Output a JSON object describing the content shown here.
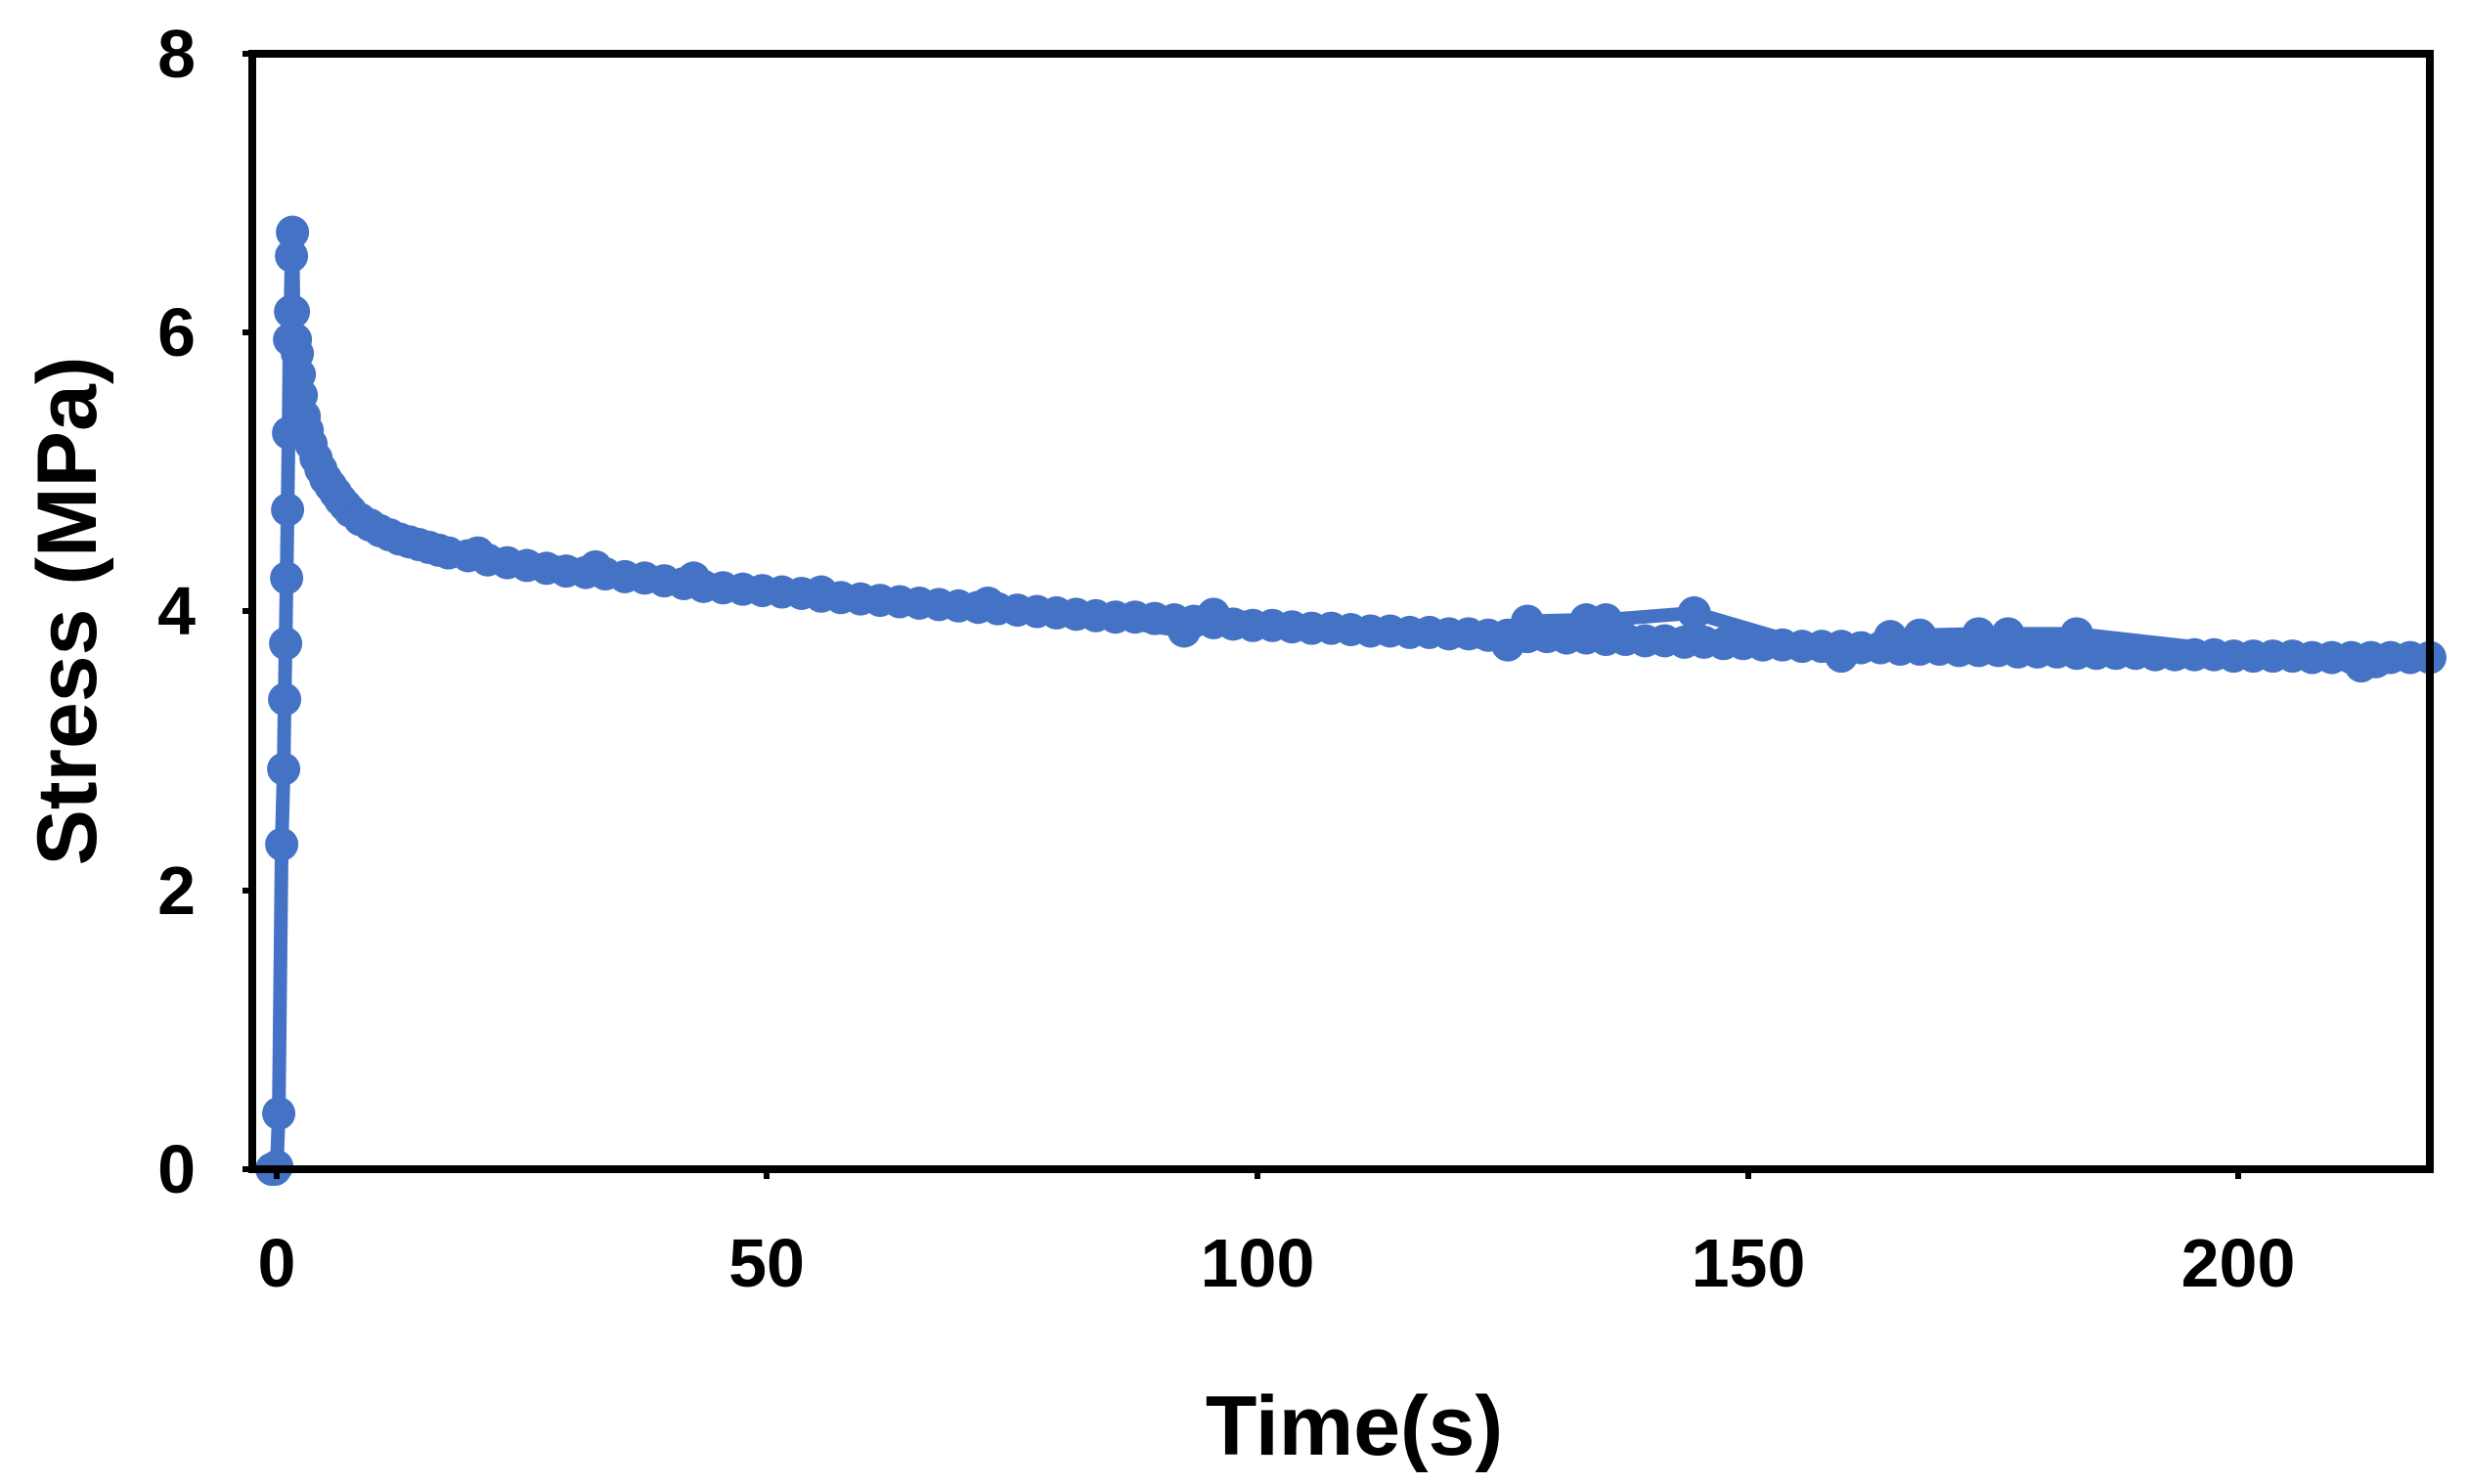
{
  "chart_data": {
    "type": "scatter",
    "title": "",
    "xlabel": "Time(s)",
    "ylabel": "Stress (MPa)",
    "xlim": [
      -2,
      220
    ],
    "ylim": [
      0,
      8
    ],
    "x_ticks": [
      "0",
      "50",
      "100",
      "150",
      "200"
    ],
    "y_ticks": [
      "0",
      "2",
      "4",
      "6",
      "8"
    ],
    "grid": false,
    "legend": "none",
    "marker_color": "#4472C4",
    "series": [
      {
        "values": [
          [
            0.0,
            0.0
          ],
          [
            0.3,
            0.0
          ],
          [
            0.5,
            0.02
          ],
          [
            0.7,
            0.4
          ],
          [
            1.0,
            2.33
          ],
          [
            1.2,
            2.87
          ],
          [
            1.3,
            3.37
          ],
          [
            1.4,
            3.77
          ],
          [
            1.5,
            4.24
          ],
          [
            1.6,
            4.73
          ],
          [
            1.7,
            5.28
          ],
          [
            1.8,
            5.95
          ],
          [
            1.9,
            6.15
          ],
          [
            2.0,
            6.55
          ],
          [
            2.1,
            6.72
          ],
          [
            2.2,
            6.15
          ],
          [
            2.4,
            5.95
          ],
          [
            2.6,
            5.85
          ],
          [
            2.8,
            5.7
          ],
          [
            3.0,
            5.55
          ],
          [
            3.3,
            5.4
          ],
          [
            3.6,
            5.3
          ],
          [
            4.0,
            5.2
          ],
          [
            4.5,
            5.1
          ],
          [
            5.0,
            5.02
          ],
          [
            5.5,
            4.95
          ],
          [
            6.0,
            4.9
          ],
          [
            6.5,
            4.85
          ],
          [
            7.0,
            4.8
          ],
          [
            7.5,
            4.76
          ],
          [
            8.0,
            4.72
          ],
          [
            9.0,
            4.66
          ],
          [
            10.0,
            4.62
          ],
          [
            11.0,
            4.58
          ],
          [
            12.0,
            4.55
          ],
          [
            13.0,
            4.52
          ],
          [
            14.0,
            4.5
          ],
          [
            15.0,
            4.48
          ],
          [
            16.0,
            4.46
          ],
          [
            17.0,
            4.44
          ],
          [
            18.0,
            4.42
          ],
          [
            20.0,
            4.4
          ],
          [
            22.0,
            4.37
          ],
          [
            24.0,
            4.35
          ],
          [
            26.0,
            4.33
          ],
          [
            28.0,
            4.31
          ],
          [
            30.0,
            4.29
          ],
          [
            32.0,
            4.28
          ],
          [
            34.0,
            4.27
          ],
          [
            36.0,
            4.25
          ],
          [
            38.0,
            4.24
          ],
          [
            40.0,
            4.22
          ],
          [
            42.0,
            4.2
          ],
          [
            44.0,
            4.18
          ],
          [
            46.0,
            4.17
          ],
          [
            48.0,
            4.16
          ],
          [
            50.0,
            4.15
          ],
          [
            52.0,
            4.14
          ],
          [
            54.0,
            4.13
          ],
          [
            56.0,
            4.11
          ],
          [
            58.0,
            4.1
          ],
          [
            60.0,
            4.09
          ],
          [
            62.0,
            4.08
          ],
          [
            64.0,
            4.07
          ],
          [
            66.0,
            4.06
          ],
          [
            68.0,
            4.05
          ],
          [
            70.0,
            4.04
          ],
          [
            72.0,
            4.03
          ],
          [
            74.0,
            4.02
          ],
          [
            76.0,
            4.01
          ],
          [
            78.0,
            4.0
          ],
          [
            80.0,
            3.99
          ],
          [
            82.0,
            3.98
          ],
          [
            84.0,
            3.97
          ],
          [
            86.0,
            3.96
          ],
          [
            88.0,
            3.96
          ],
          [
            90.0,
            3.95
          ],
          [
            92.0,
            3.94
          ],
          [
            94.0,
            3.93
          ],
          [
            96.0,
            3.92
          ],
          [
            98.0,
            3.91
          ],
          [
            100.0,
            3.9
          ],
          [
            102.0,
            3.9
          ],
          [
            104.0,
            3.89
          ],
          [
            106.0,
            3.88
          ],
          [
            108.0,
            3.88
          ],
          [
            110.0,
            3.87
          ],
          [
            112.0,
            3.86
          ],
          [
            114.0,
            3.86
          ],
          [
            116.0,
            3.85
          ],
          [
            118.0,
            3.85
          ],
          [
            120.0,
            3.84
          ],
          [
            122.0,
            3.84
          ],
          [
            124.0,
            3.83
          ],
          [
            126.0,
            3.83
          ],
          [
            128.0,
            3.82
          ],
          [
            130.0,
            3.82
          ],
          [
            132.0,
            3.81
          ],
          [
            134.0,
            3.81
          ],
          [
            136.0,
            3.8
          ],
          [
            138.0,
            3.8
          ],
          [
            140.0,
            3.79
          ],
          [
            142.0,
            3.79
          ],
          [
            144.0,
            3.78
          ],
          [
            146.0,
            3.78
          ],
          [
            148.0,
            3.77
          ],
          [
            150.0,
            3.77
          ],
          [
            152.0,
            3.76
          ],
          [
            154.0,
            3.76
          ],
          [
            156.0,
            3.75
          ],
          [
            158.0,
            3.75
          ],
          [
            160.0,
            3.75
          ],
          [
            162.0,
            3.74
          ],
          [
            164.0,
            3.74
          ],
          [
            166.0,
            3.73
          ],
          [
            168.0,
            3.73
          ],
          [
            170.0,
            3.73
          ],
          [
            172.0,
            3.72
          ],
          [
            174.0,
            3.72
          ],
          [
            176.0,
            3.72
          ],
          [
            178.0,
            3.71
          ],
          [
            180.0,
            3.71
          ],
          [
            182.0,
            3.71
          ],
          [
            184.0,
            3.7
          ],
          [
            186.0,
            3.7
          ],
          [
            188.0,
            3.7
          ],
          [
            190.0,
            3.7
          ],
          [
            192.0,
            3.69
          ],
          [
            194.0,
            3.69
          ],
          [
            196.0,
            3.69
          ],
          [
            198.0,
            3.69
          ],
          [
            200.0,
            3.68
          ],
          [
            202.0,
            3.68
          ],
          [
            204.0,
            3.68
          ],
          [
            206.0,
            3.68
          ],
          [
            208.0,
            3.67
          ],
          [
            210.0,
            3.67
          ],
          [
            212.0,
            3.67
          ],
          [
            214.0,
            3.67
          ],
          [
            216.0,
            3.67
          ],
          [
            218.0,
            3.67
          ],
          [
            220.0,
            3.67
          ],
          [
            21.0,
            4.42
          ],
          [
            33.0,
            4.32
          ],
          [
            43.0,
            4.24
          ],
          [
            56.0,
            4.14
          ],
          [
            73.0,
            4.06
          ],
          [
            93.0,
            3.86
          ],
          [
            96.0,
            3.98
          ],
          [
            126.0,
            3.76
          ],
          [
            128.0,
            3.93
          ],
          [
            134.0,
            3.94
          ],
          [
            136.0,
            3.94
          ],
          [
            145.0,
            3.99
          ],
          [
            160.0,
            3.68
          ],
          [
            165.0,
            3.82
          ],
          [
            168.0,
            3.83
          ],
          [
            174.0,
            3.84
          ],
          [
            177.0,
            3.84
          ],
          [
            184.0,
            3.84
          ],
          [
            213.0,
            3.61
          ],
          [
            214.5,
            3.64
          ]
        ]
      }
    ]
  }
}
